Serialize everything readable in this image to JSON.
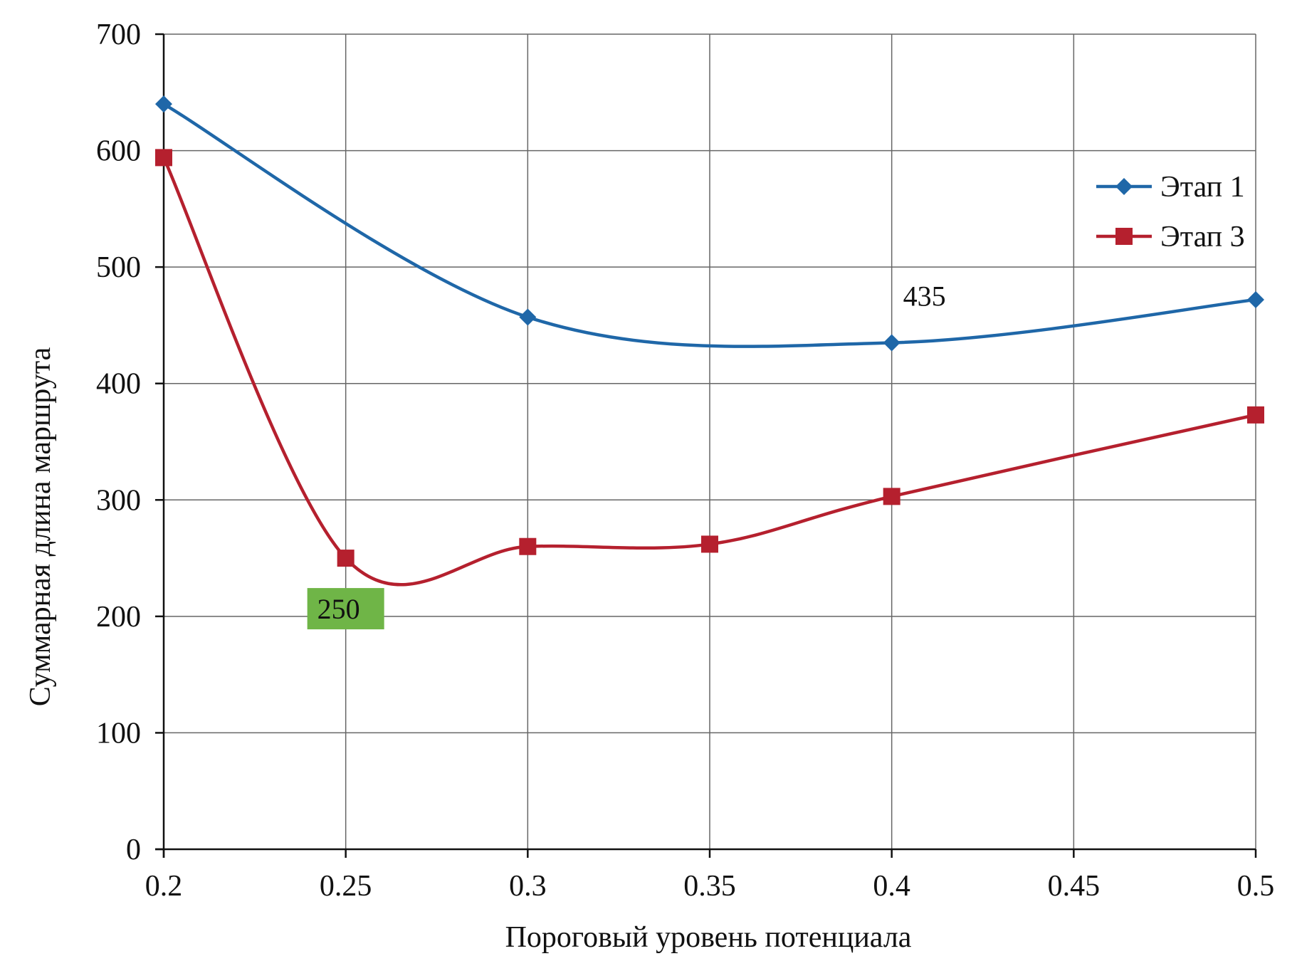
{
  "chart_data": {
    "type": "line",
    "title": "",
    "xlabel": "Пороговый уровень потенциала",
    "ylabel": "Суммарная длина маршрута",
    "x": [
      0.2,
      0.25,
      0.3,
      0.35,
      0.4,
      0.45,
      0.5
    ],
    "x_tick_labels": [
      "0.2",
      "0.25",
      "0.3",
      "0.35",
      "0.4",
      "0.45",
      "0.5"
    ],
    "y_tick_labels": [
      "0",
      "100",
      "200",
      "300",
      "400",
      "500",
      "600",
      "700"
    ],
    "xlim": [
      0.2,
      0.5
    ],
    "ylim": [
      0,
      700
    ],
    "grid": true,
    "legend_position": "top-right",
    "series": [
      {
        "name": "Этап 1",
        "color": "#1f67a8",
        "marker": "diamond",
        "x": [
          0.2,
          0.3,
          0.4,
          0.5
        ],
        "values": [
          640,
          457,
          435,
          472
        ]
      },
      {
        "name": "Этап 3",
        "color": "#b5202e",
        "marker": "square",
        "x": [
          0.2,
          0.25,
          0.3,
          0.35,
          0.4,
          0.5
        ],
        "values": [
          594,
          250,
          260,
          262,
          303,
          373
        ]
      }
    ],
    "annotations": [
      {
        "text": "435",
        "series": 0,
        "x": 0.4,
        "y": 435,
        "style": "plain"
      },
      {
        "text": "250",
        "series": 1,
        "x": 0.25,
        "y": 250,
        "style": "highlight",
        "background": "#6fb547"
      }
    ]
  }
}
